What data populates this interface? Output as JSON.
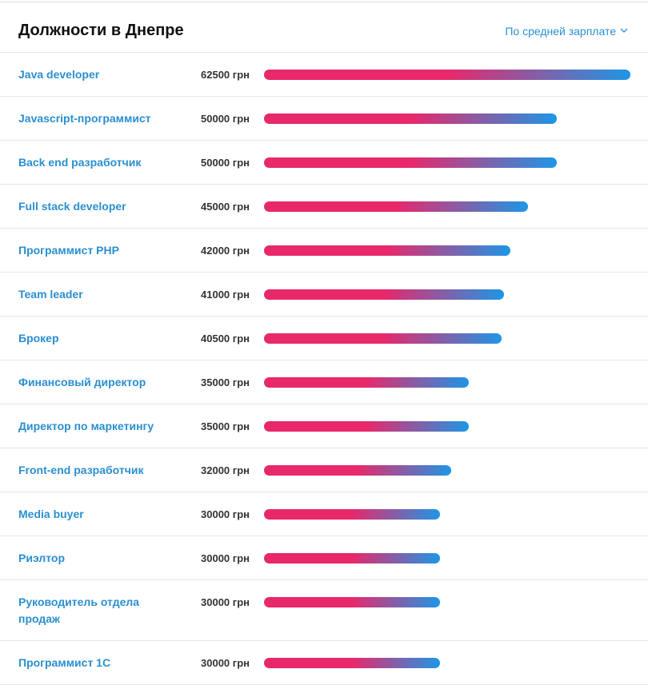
{
  "chart_data": {
    "type": "bar",
    "title": "Должности в Днепре",
    "sort_control": "По средней зарплате",
    "categories": [
      "Java developer",
      "Javascript-программист",
      "Back end разработчик",
      "Full stack developer",
      "Программист PHP",
      "Team leader",
      "Брокер",
      "Финансовый директор",
      "Директор по маркетингу",
      "Front-end разработчик",
      "Media buyer",
      "Риэлтор",
      "Руководитель отдела продаж",
      "Программист 1С"
    ],
    "values": [
      62500,
      50000,
      50000,
      45000,
      42000,
      41000,
      40500,
      35000,
      35000,
      32000,
      30000,
      30000,
      30000,
      30000
    ],
    "value_labels": [
      "62500 грн",
      "50000 грн",
      "50000 грн",
      "45000 грн",
      "42000 грн",
      "41000 грн",
      "40500 грн",
      "35000 грн",
      "35000 грн",
      "32000 грн",
      "30000 грн",
      "30000 грн",
      "30000 грн",
      "30000 грн"
    ],
    "colors": [
      "#e8286b",
      "#1e96e6"
    ]
  }
}
